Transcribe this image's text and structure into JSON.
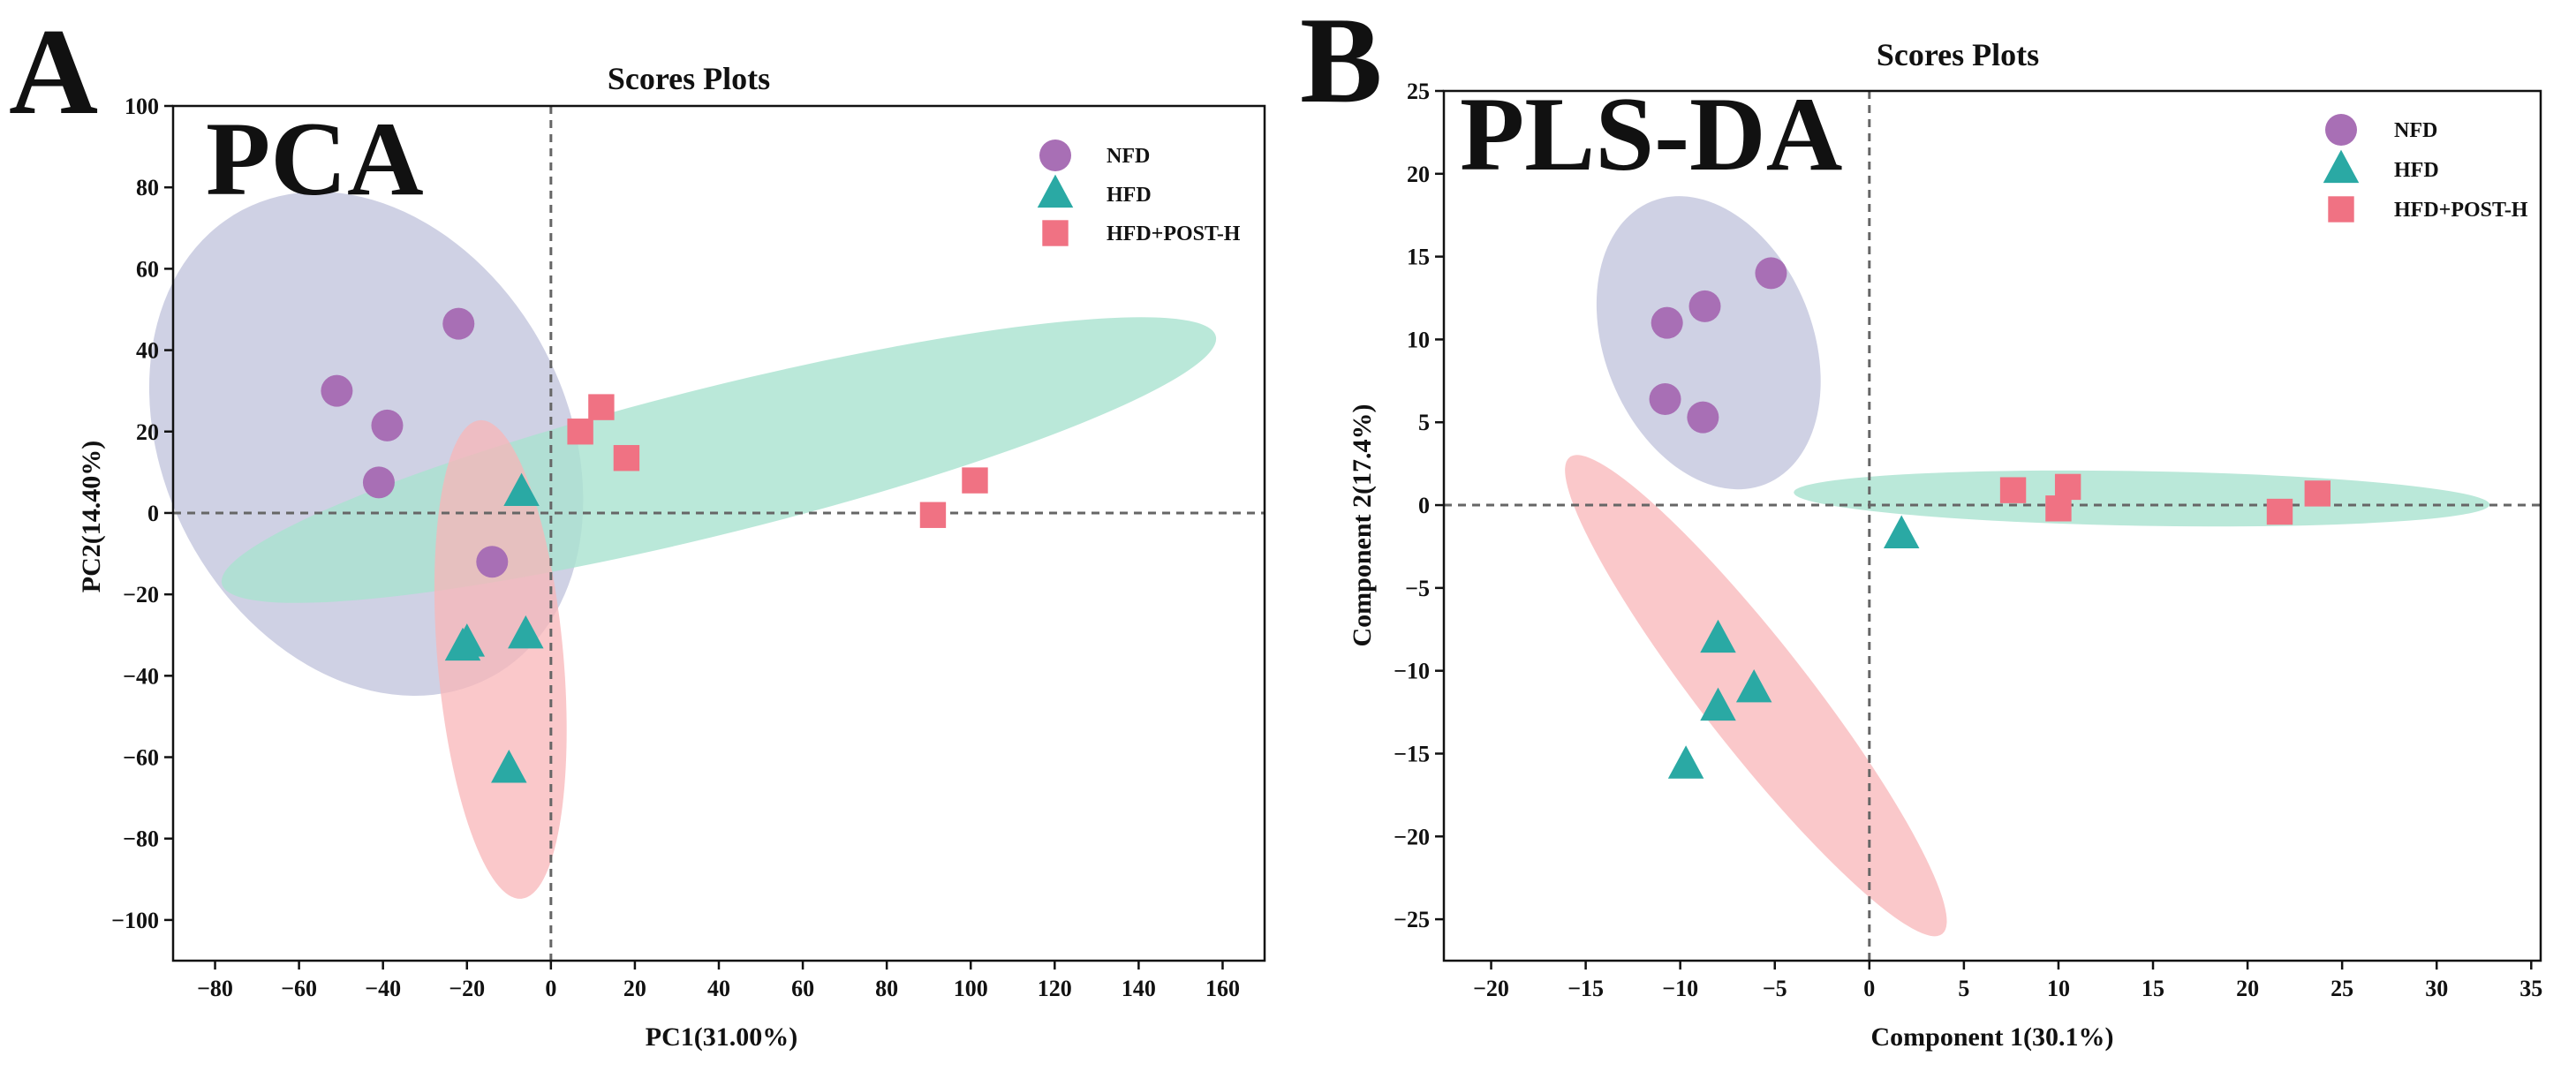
{
  "colors": {
    "NFD": "#a86fb5",
    "HFD": "#2aa9a4",
    "HFD+POST-H": "#f07283",
    "ellipse_NFD": "#c7c9df",
    "ellipse_HFD": "#a9e2d0",
    "ellipse_POST": "#f8b6b8",
    "zero_line": "#666666"
  },
  "chart_data": [
    {
      "type": "scatter",
      "panel": "A",
      "method": "PCA",
      "title": "Scores Plots",
      "xlabel": "PC1(31.00%)",
      "ylabel": "PC2(14.40%)",
      "xlim": [
        -90,
        170
      ],
      "ylim": [
        -110,
        100
      ],
      "xticks": [
        -80,
        -60,
        -40,
        -20,
        0,
        20,
        40,
        60,
        80,
        100,
        120,
        140,
        160
      ],
      "yticks": [
        -100,
        -80,
        -60,
        -40,
        -20,
        0,
        20,
        40,
        60,
        80,
        100
      ],
      "xtick_labels": [
        "−80",
        "−60",
        "−40",
        "−20",
        "0",
        "20",
        "40",
        "60",
        "80",
        "100",
        "120",
        "140",
        "160"
      ],
      "ytick_labels": [
        "−100",
        "−80",
        "−60",
        "−40",
        "−20",
        "0",
        "20",
        "40",
        "60",
        "80",
        "100"
      ],
      "legend_position": "top-right",
      "legend": [
        "NFD",
        "HFD",
        "HFD+POST-H"
      ],
      "series": [
        {
          "name": "NFD",
          "marker": "circle",
          "points": [
            [
              -22,
              46.5
            ],
            [
              -51,
              30
            ],
            [
              -39,
              21.5
            ],
            [
              -41,
              7.5
            ],
            [
              -14,
              -12
            ]
          ]
        },
        {
          "name": "HFD",
          "marker": "triangle",
          "points": [
            [
              -7,
              5
            ],
            [
              -20,
              -32
            ],
            [
              -21,
              -33
            ],
            [
              -6,
              -30
            ],
            [
              -10,
              -63
            ]
          ]
        },
        {
          "name": "HFD+POST-H",
          "marker": "square",
          "points": [
            [
              12,
              26
            ],
            [
              7,
              20
            ],
            [
              18,
              13.5
            ],
            [
              101,
              8
            ],
            [
              91,
              -0.5
            ]
          ]
        }
      ],
      "ellipses": [
        {
          "group": "NFD",
          "cx": -44,
          "cy": 17,
          "rx": 48,
          "ry": 65,
          "angle": 28
        },
        {
          "group": "HFD",
          "cx": 40,
          "cy": 13,
          "rx": 122,
          "ry": 18,
          "angle": 14
        },
        {
          "group": "HFD+POST-H",
          "cx": -12,
          "cy": -36,
          "rx": 15,
          "ry": 59,
          "angle": 5
        }
      ]
    },
    {
      "type": "scatter",
      "panel": "B",
      "method": "PLS-DA",
      "title": "Scores Plots",
      "xlabel": "Component 1(30.1%)",
      "ylabel": "Component 2(17.4%)",
      "xlim": [
        -22.5,
        35.5
      ],
      "ylim": [
        -27.5,
        25
      ],
      "xticks": [
        -20,
        -15,
        -10,
        -5,
        0,
        5,
        10,
        15,
        20,
        25,
        30,
        35
      ],
      "yticks": [
        -25,
        -20,
        -15,
        -10,
        -5,
        0,
        5,
        10,
        15,
        20,
        25
      ],
      "xtick_labels": [
        "−20",
        "−15",
        "−10",
        "−5",
        "0",
        "5",
        "10",
        "15",
        "20",
        "25",
        "30",
        "35"
      ],
      "ytick_labels": [
        "−25",
        "−20",
        "−15",
        "−10",
        "−5",
        "0",
        "5",
        "10",
        "15",
        "20",
        "25"
      ],
      "legend_position": "top-right",
      "legend": [
        "NFD",
        "HFD",
        "HFD+POST-H"
      ],
      "series": [
        {
          "name": "NFD",
          "marker": "circle",
          "points": [
            [
              -10.7,
              11
            ],
            [
              -8.7,
              12
            ],
            [
              -5.2,
              14
            ],
            [
              -10.8,
              6.4
            ],
            [
              -8.8,
              5.3
            ]
          ]
        },
        {
          "name": "HFD",
          "marker": "triangle",
          "points": [
            [
              1.7,
              -1.8
            ],
            [
              -8,
              -8.1
            ],
            [
              -6.1,
              -11.1
            ],
            [
              -8,
              -12.2
            ],
            [
              -9.7,
              -15.7
            ]
          ]
        },
        {
          "name": "HFD+POST-H",
          "marker": "square",
          "points": [
            [
              7.6,
              0.9
            ],
            [
              10.5,
              1.1
            ],
            [
              10,
              -0.2
            ],
            [
              21.7,
              -0.4
            ],
            [
              23.7,
              0.7
            ]
          ]
        }
      ],
      "ellipses": [
        {
          "group": "NFD",
          "cx": -8.5,
          "cy": 9.8,
          "rx": 5.5,
          "ry": 9.2,
          "angle": 22
        },
        {
          "group": "HFD",
          "cx": 14.4,
          "cy": 0.4,
          "rx": 18.4,
          "ry": 1.65,
          "angle": -1
        },
        {
          "group": "HFD+POST-H",
          "cx": -6,
          "cy": -11.5,
          "rx": 16,
          "ry": 3.2,
          "angle": -52
        }
      ]
    }
  ]
}
